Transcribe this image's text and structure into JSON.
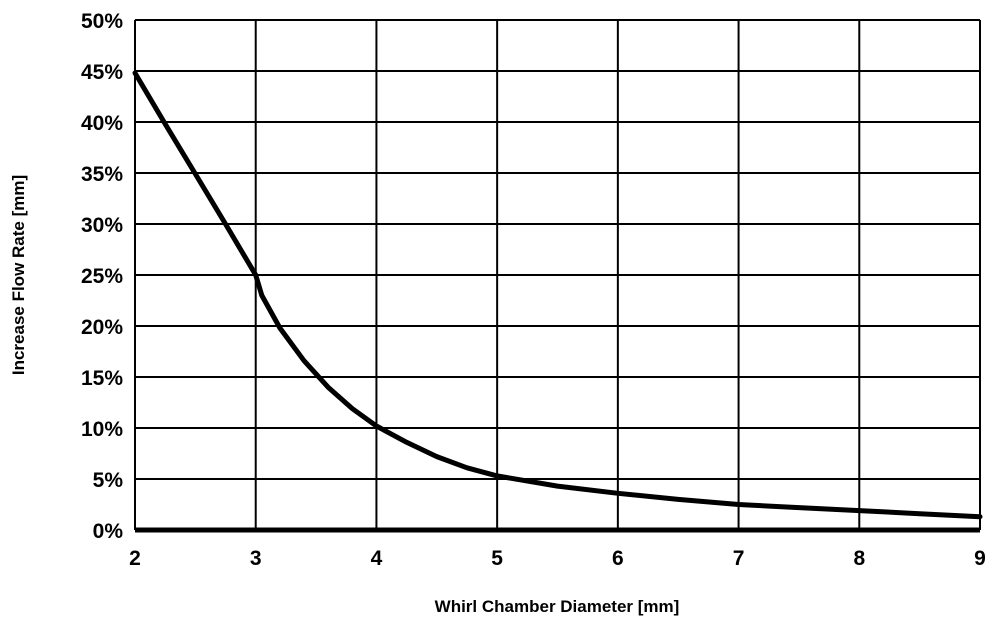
{
  "chart_data": {
    "type": "line",
    "title": "",
    "xlabel": "Whirl Chamber Diameter [mm]",
    "ylabel": "Increase Flow Rate [mm]",
    "xlim": [
      2,
      9
    ],
    "ylim": [
      0,
      50
    ],
    "grid": true,
    "x_ticks": [
      "2",
      "3",
      "4",
      "5",
      "6",
      "7",
      "8",
      "9"
    ],
    "y_ticks": [
      "0%",
      "5%",
      "10%",
      "15%",
      "20%",
      "25%",
      "30%",
      "35%",
      "40%",
      "45%",
      "50%"
    ],
    "series": [
      {
        "color": "#000000",
        "x": [
          2.0,
          2.25,
          2.5,
          2.75,
          3.0,
          3.05,
          3.2,
          3.4,
          3.6,
          3.8,
          4.0,
          4.25,
          4.5,
          4.75,
          5.0,
          5.5,
          6.0,
          6.5,
          7.0,
          7.5,
          8.0,
          8.5,
          9.0
        ],
        "y": [
          44.8,
          39.8,
          34.9,
          30.0,
          25.0,
          23.0,
          19.8,
          16.6,
          14.0,
          11.9,
          10.2,
          8.6,
          7.2,
          6.1,
          5.3,
          4.3,
          3.6,
          3.0,
          2.5,
          2.2,
          1.9,
          1.6,
          1.3
        ]
      }
    ]
  }
}
